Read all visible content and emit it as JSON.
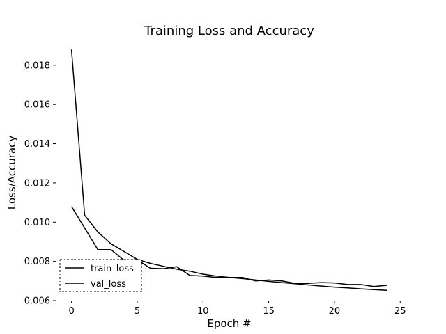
{
  "chart_data": {
    "type": "line",
    "title": "Training Loss and Accuracy",
    "xlabel": "Epoch #",
    "ylabel": "Loss/Accuracy",
    "xlim": [
      -1.2,
      25.2
    ],
    "ylim": [
      0.006,
      0.0192
    ],
    "xticks": [
      0,
      5,
      10,
      15,
      20,
      25
    ],
    "yticks": [
      0.006,
      0.008,
      0.01,
      0.012,
      0.014,
      0.016,
      0.018
    ],
    "ytick_labels": [
      "0.006",
      "0.008",
      "0.010",
      "0.012",
      "0.014",
      "0.016",
      "0.018"
    ],
    "grid": false,
    "legend": {
      "position": "lower-left",
      "entries": [
        "train_loss",
        "val_loss"
      ]
    },
    "series": [
      {
        "name": "train_loss",
        "color": "#000000",
        "x": [
          0,
          1,
          2,
          3,
          4,
          5,
          6,
          7,
          8,
          9,
          10,
          11,
          12,
          13,
          14,
          15,
          16,
          17,
          18,
          19,
          20,
          21,
          22,
          23,
          24
        ],
        "y": [
          0.0188,
          0.01035,
          0.0095,
          0.0089,
          0.0085,
          0.0081,
          0.0079,
          0.00775,
          0.0076,
          0.0075,
          0.00735,
          0.00725,
          0.00718,
          0.00712,
          0.00705,
          0.00698,
          0.00692,
          0.00686,
          0.0068,
          0.00674,
          0.00669,
          0.00665,
          0.0066,
          0.00656,
          0.00652
        ]
      },
      {
        "name": "val_loss",
        "color": "#000000",
        "x": [
          0,
          1,
          2,
          3,
          4,
          5,
          6,
          7,
          8,
          9,
          10,
          11,
          12,
          13,
          14,
          15,
          16,
          17,
          18,
          19,
          20,
          21,
          22,
          23,
          24
        ],
        "y": [
          0.0108,
          0.0097,
          0.0086,
          0.0086,
          0.00805,
          0.00808,
          0.00765,
          0.00763,
          0.00773,
          0.00728,
          0.00725,
          0.00718,
          0.00718,
          0.00718,
          0.007,
          0.00705,
          0.007,
          0.00688,
          0.00688,
          0.00692,
          0.0069,
          0.00682,
          0.00682,
          0.00672,
          0.00678
        ]
      }
    ]
  }
}
